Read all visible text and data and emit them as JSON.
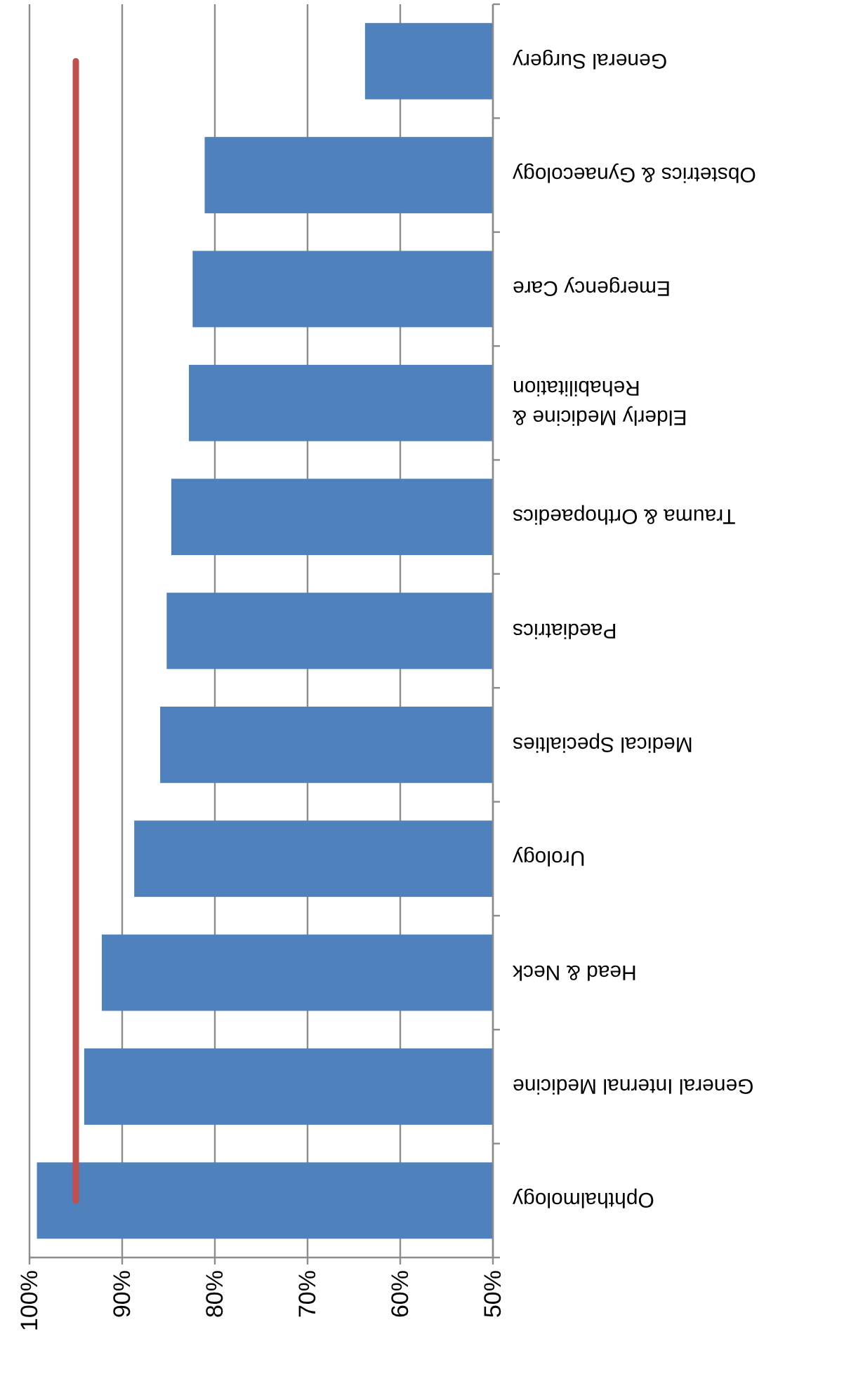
{
  "chart_data": {
    "type": "bar",
    "orientation": "horizontal",
    "categories": [
      "General Surgery",
      "Obstetrics & Gynaecology",
      "Emergency Care",
      "Elderly Medicine & Rehabilitation",
      "Trauma & Orthopaedics",
      "Paediatrics",
      "Medical Specialties",
      "Urology",
      "Head & Neck",
      "General Internal Medicine",
      "Ophthalmology"
    ],
    "series": [
      {
        "color": "#4f81bd",
        "values": [
          0.638,
          0.811,
          0.824,
          0.828,
          0.847,
          0.852,
          0.859,
          0.887,
          0.922,
          0.941,
          0.992
        ]
      },
      {
        "type": "line",
        "color": "#c0504d",
        "values": [
          0.95,
          0.95,
          0.95,
          0.95,
          0.95,
          0.95,
          0.95,
          0.95,
          0.95,
          0.95,
          0.95
        ]
      }
    ],
    "xlim": [
      1,
      0.5
    ],
    "xticks": [
      {
        "value": 1,
        "label": "100%"
      },
      {
        "value": 0.9,
        "label": "90%"
      },
      {
        "value": 0.8,
        "label": "80%"
      },
      {
        "value": 0.7,
        "label": "70%"
      },
      {
        "value": 0.6,
        "label": "60%"
      },
      {
        "value": 0.5,
        "label": "50%"
      }
    ],
    "grid": "x",
    "marker": "none"
  }
}
